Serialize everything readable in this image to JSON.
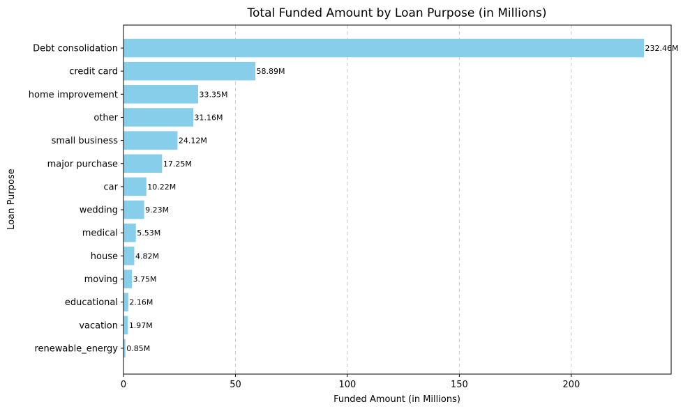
{
  "chart_data": {
    "type": "bar",
    "orientation": "horizontal",
    "title": "Total Funded Amount by Loan Purpose (in Millions)",
    "xlabel": "Funded Amount (in Millions)",
    "ylabel": "Loan Purpose",
    "categories": [
      "Debt consolidation",
      "credit card",
      "home improvement",
      "other",
      "small business",
      "major purchase",
      "car",
      "wedding",
      "medical",
      "house",
      "moving",
      "educational",
      "vacation",
      "renewable_energy"
    ],
    "values": [
      232.46,
      58.89,
      33.35,
      31.16,
      24.12,
      17.25,
      10.22,
      9.23,
      5.53,
      4.82,
      3.75,
      2.16,
      1.97,
      0.85
    ],
    "value_labels": [
      "232.46M",
      "58.89M",
      "33.35M",
      "31.16M",
      "24.12M",
      "17.25M",
      "10.22M",
      "9.23M",
      "5.53M",
      "4.82M",
      "3.75M",
      "2.16M",
      "1.97M",
      "0.85M"
    ],
    "xticks": [
      0,
      50,
      100,
      150,
      200
    ],
    "xlim": [
      0,
      244.6
    ],
    "grid": "x-dashed",
    "bar_color": "#87ceeb",
    "grid_color": "#cccccc"
  }
}
